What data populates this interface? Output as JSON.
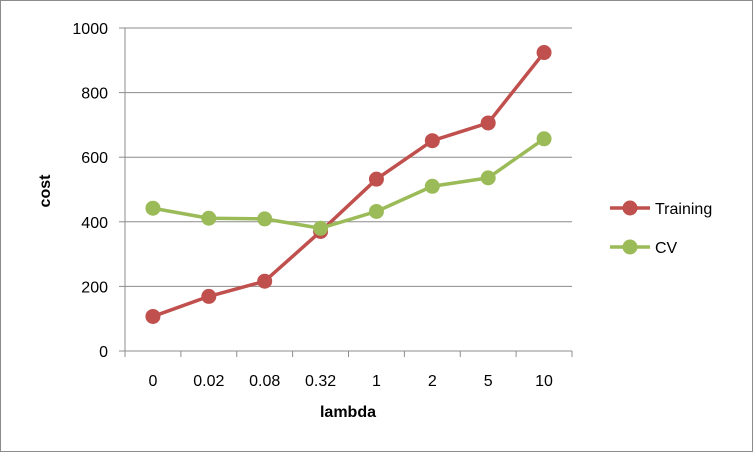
{
  "chart_data": {
    "type": "line",
    "categories": [
      "0",
      "0.02",
      "0.08",
      "0.32",
      "1",
      "2",
      "5",
      "10"
    ],
    "series": [
      {
        "name": "Training",
        "color": "#c0504d",
        "values": [
          107,
          169,
          216,
          370,
          532,
          651,
          706,
          924
        ]
      },
      {
        "name": "CV",
        "color": "#9bbb59",
        "values": [
          442,
          411,
          409,
          380,
          432,
          510,
          536,
          657
        ]
      }
    ],
    "xlabel": "lambda",
    "ylabel": "cost",
    "ylim": [
      0,
      1000
    ],
    "yticks": [
      "0",
      "200",
      "400",
      "600",
      "800",
      "1000"
    ],
    "grid": "horizontal",
    "legend_position": "right"
  }
}
